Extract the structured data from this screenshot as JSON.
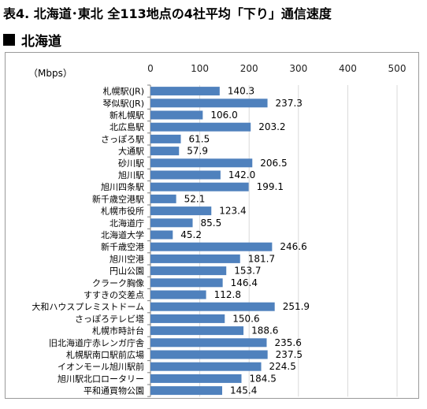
{
  "header": {
    "title": "表4. 北海道･東北 全113地点の4社平均「下り」通信速度",
    "section": "北海道"
  },
  "chart_data": {
    "type": "bar",
    "orientation": "horizontal",
    "unit_label": "（Mbps）",
    "xlim": [
      0,
      500
    ],
    "ticks": [
      0,
      100,
      200,
      300,
      400,
      500
    ],
    "grid": true,
    "bar_color": "#4f81bd",
    "categories": [
      "札幌駅(JR)",
      "琴似駅(JR)",
      "新札幌駅",
      "北広島駅",
      "さっぽろ駅",
      "大通駅",
      "砂川駅",
      "旭川駅",
      "旭川四条駅",
      "新千歳空港駅",
      "札幌市役所",
      "北海道庁",
      "北海道大学",
      "新千歳空港",
      "旭川空港",
      "円山公園",
      "クラーク胸像",
      "すすきの交差点",
      "大和ハウスプレミストドーム",
      "さっぽろテレビ塔",
      "札幌市時計台",
      "旧北海道庁赤レンガ庁舎",
      "札幌駅南口駅前広場",
      "イオンモール旭川駅前",
      "旭川駅北口ロータリー",
      "平和通買物公園"
    ],
    "values": [
      140.3,
      237.3,
      106.0,
      203.2,
      61.5,
      57.9,
      206.5,
      142.0,
      199.1,
      52.1,
      123.4,
      85.5,
      45.2,
      246.6,
      181.7,
      153.7,
      146.4,
      112.8,
      251.9,
      150.6,
      188.6,
      235.6,
      237.5,
      224.5,
      184.5,
      145.4
    ],
    "value_labels": [
      "140.3",
      "237.3",
      "106.0",
      "203.2",
      "61.5",
      "57.9",
      "206.5",
      "142.0",
      "199.1",
      "52.1",
      "123.4",
      "85.5",
      "45.2",
      "246.6",
      "181.7",
      "153.7",
      "146.4",
      "112.8",
      "251.9",
      "150.6",
      "188.6",
      "235.6",
      "237.5",
      "224.5",
      "184.5",
      "145.4"
    ]
  }
}
